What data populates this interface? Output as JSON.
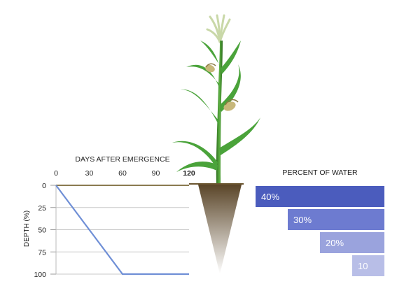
{
  "root_chart": {
    "x_axis_title": "DAYS AFTER EMERGENCE",
    "y_axis_title": "DEPTH (%)",
    "x_ticks": [
      "0",
      "30",
      "60",
      "90",
      "120"
    ],
    "y_ticks": [
      "0",
      "25",
      "50",
      "75",
      "100"
    ],
    "line_color": "#6f8fd6",
    "points": [
      {
        "days": 0,
        "depth": 0
      },
      {
        "days": 60,
        "depth": 100
      },
      {
        "days": 120,
        "depth": 100
      }
    ]
  },
  "water": {
    "title": "PERCENT OF WATER",
    "bars": [
      {
        "label": "40%",
        "value": 40,
        "color": "#4b5cbd"
      },
      {
        "label": "30%",
        "value": 30,
        "color": "#6d7bd0"
      },
      {
        "label": "20%",
        "value": 20,
        "color": "#9aa3dd"
      },
      {
        "label": "10",
        "value": 10,
        "color": "#b8bee7"
      }
    ]
  },
  "colors": {
    "soil_top": "#5a4528",
    "soil_bottom": "#ffffff",
    "stem": "#3f8f2c",
    "leaf": "#4aa33a",
    "tassel": "#c9d8a8",
    "ear": "#c7b77a"
  }
}
